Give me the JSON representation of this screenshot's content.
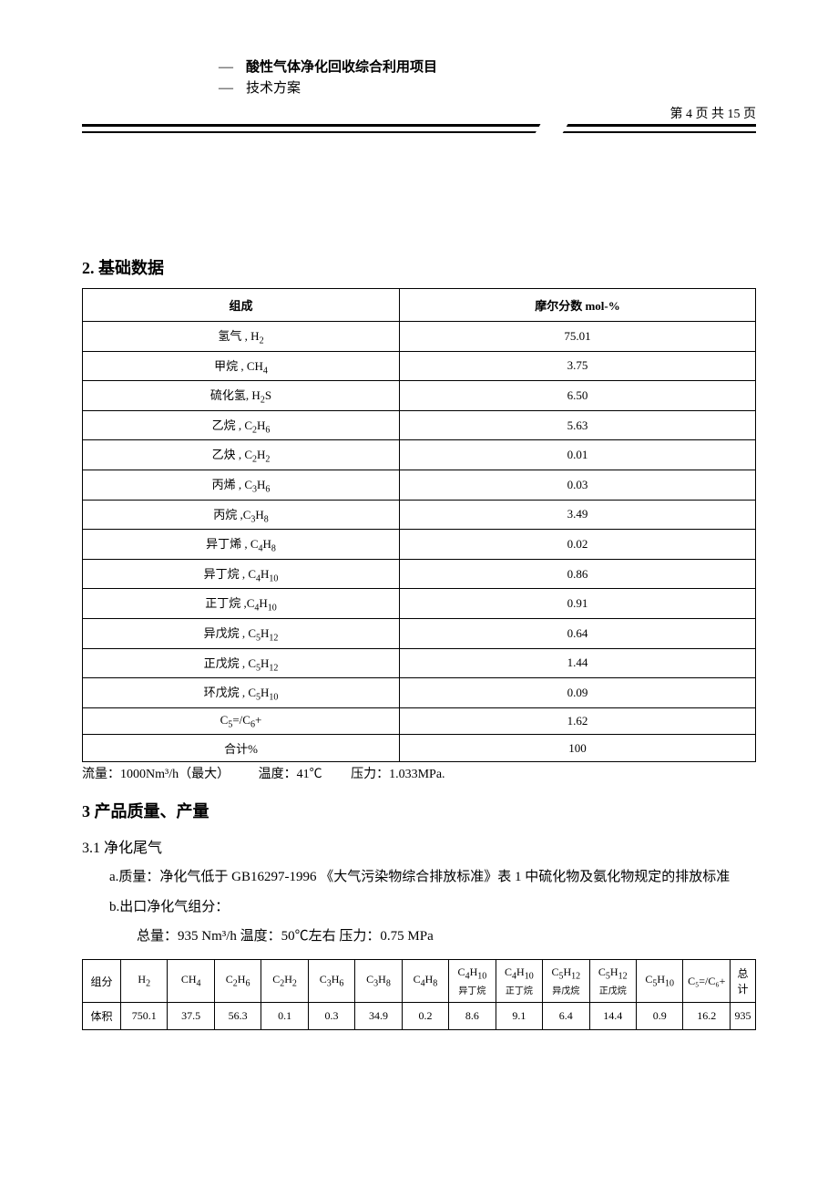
{
  "header": {
    "title": "酸性气体净化回收综合利用项目",
    "subtitle": "技术方案",
    "page_label": "第 4 页 共 15 页"
  },
  "s2": {
    "heading": "2.  基础数据",
    "col1": "组成",
    "col2": "摩尔分数 mol-%",
    "rows": [
      {
        "n": "氢气   , H",
        "f": "2",
        "v": "75.01"
      },
      {
        "n": "甲烷   , CH",
        "f": "4",
        "v": "3.75"
      },
      {
        "n": "硫化氢, H",
        "f": "2",
        "post": "S",
        "v": "6.50"
      },
      {
        "n": "乙烷  , C",
        "f": "2",
        "post": "H",
        "f2": "6",
        "v": "5.63"
      },
      {
        "n": "乙炔  , C",
        "f": "2",
        "post": "H",
        "f2": "2",
        "v": "0.01"
      },
      {
        "n": "丙烯  ,  C",
        "f": "3",
        "post": "H",
        "f2": "6",
        "v": "0.03"
      },
      {
        "n": "丙烷  ,C",
        "f": "3",
        "post": "H",
        "f2": "8",
        "v": "3.49"
      },
      {
        "n": "异丁烯  , C",
        "f": "4",
        "post": "H",
        "f2": "8",
        "v": "0.02"
      },
      {
        "n": "异丁烷  , C",
        "f": "4",
        "post": "H",
        "f2": "10",
        "v": "0.86"
      },
      {
        "n": "正丁烷  ,C",
        "f": "4",
        "post": "H",
        "f2": "10",
        "v": "0.91"
      },
      {
        "n": "异戊烷   , C",
        "f": "5",
        "post": "H",
        "f2": "12",
        "v": "0.64"
      },
      {
        "n": "正戊烷   , C",
        "f": "5",
        "post": "H",
        "f2": "12",
        "v": "1.44"
      },
      {
        "n": "环戊烷   , C",
        "f": "5",
        "post": "H",
        "f2": "10",
        "v": "0.09"
      },
      {
        "n": "C",
        "f": "5",
        "eq": "=/C",
        "f2": "6",
        "plus": "+",
        "v": "1.62"
      },
      {
        "n": "合计%",
        "v": "100"
      }
    ],
    "cond": {
      "flow_l": "流量：",
      "flow_v": "1000Nm³/h（最大）",
      "temp_l": "温度：",
      "temp_v": "41℃",
      "pres_l": "压力：",
      "pres_v": "1.033MPa."
    }
  },
  "s3": {
    "heading": "3  产品质量、产量",
    "s31": {
      "heading": "3.1 净化尾气",
      "a": "a.质量：净化气低于 GB16297-1996  《大气污染物综合排放标准》表 1 中硫化物及氨化物规定的排放标准",
      "b": "b.出口净化气组分：",
      "line": "总量：935 Nm³/h    温度：50℃左右     压力：0.75 MPa"
    },
    "t2": {
      "hdr_label": "组分",
      "row_label": "体积",
      "cols": [
        {
          "m": "H",
          "s": "2",
          "sub": "",
          "v": "750.1"
        },
        {
          "m": "CH",
          "s": "4",
          "sub": "",
          "v": "37.5"
        },
        {
          "m": "C",
          "s": "2",
          "m2": "H",
          "s2": "6",
          "sub": "",
          "v": "56.3"
        },
        {
          "m": "C",
          "s": "2",
          "m2": "H",
          "s2": "2",
          "sub": "",
          "v": "0.1"
        },
        {
          "m": "C",
          "s": "3",
          "m2": "H",
          "s2": "6",
          "sub": "",
          "v": "0.3"
        },
        {
          "m": "C",
          "s": "3",
          "m2": "H",
          "s2": "8",
          "sub": "",
          "v": "34.9"
        },
        {
          "m": "C",
          "s": "4",
          "m2": "H",
          "s2": "8",
          "sub": "",
          "v": "0.2"
        },
        {
          "m": "C",
          "s": "4",
          "m2": "H",
          "s2": "10",
          "sub": "异丁烷",
          "v": "8.6"
        },
        {
          "m": "C",
          "s": "4",
          "m2": "H",
          "s2": "10",
          "sub": "正丁烷",
          "v": "9.1"
        },
        {
          "m": "C",
          "s": "5",
          "m2": "H",
          "s2": "12",
          "sub": "异戊烷",
          "v": "6.4"
        },
        {
          "m": "C",
          "s": "5",
          "m2": "H",
          "s2": "12",
          "sub": "正戊烷",
          "v": "14.4"
        },
        {
          "m": "C",
          "s": "5",
          "m2": "H",
          "s2": "10",
          "sub": "",
          "v": "0.9"
        },
        {
          "raw": "C₅=/C₆+",
          "sub": "",
          "v": "16.2"
        }
      ],
      "total_label": "总计",
      "total_v": "935"
    }
  }
}
